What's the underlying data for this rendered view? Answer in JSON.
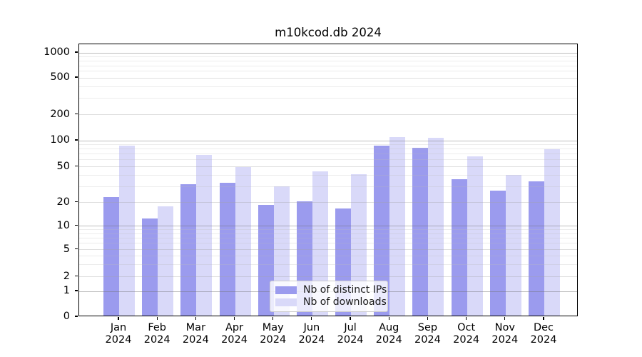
{
  "window": {
    "background": "#ffffff"
  },
  "chart_data": {
    "type": "bar",
    "title": "m10kcod.db 2024",
    "categories": [
      "Jan",
      "Feb",
      "Mar",
      "Apr",
      "May",
      "Jun",
      "Jul",
      "Aug",
      "Sep",
      "Oct",
      "Nov",
      "Dec"
    ],
    "x_tick_second_line": "2024",
    "series": [
      {
        "name": "Nb of distinct IPs",
        "color": "#9b9bee",
        "values": [
          22,
          12,
          31,
          32,
          18,
          20,
          16,
          85,
          79,
          35,
          26,
          33
        ]
      },
      {
        "name": "Nb of downloads",
        "color": "#d9d9f9",
        "values": [
          84,
          17,
          66,
          48,
          29,
          43,
          40,
          106,
          104,
          64,
          39,
          77
        ]
      }
    ],
    "xlabel": "",
    "ylabel": "",
    "y_scale": "symlog",
    "yticks": [
      0,
      1,
      2,
      5,
      10,
      20,
      50,
      100,
      200,
      500,
      1000
    ],
    "ylim": [
      0,
      1270
    ],
    "grid": true,
    "legend_position": "lower center"
  },
  "colors": {
    "axis": "#000000",
    "grid_major": "#bdbdbd",
    "grid_sub": "#e2e2e2",
    "grid_minor": "#ececec",
    "legend_border": "#cccccc"
  }
}
